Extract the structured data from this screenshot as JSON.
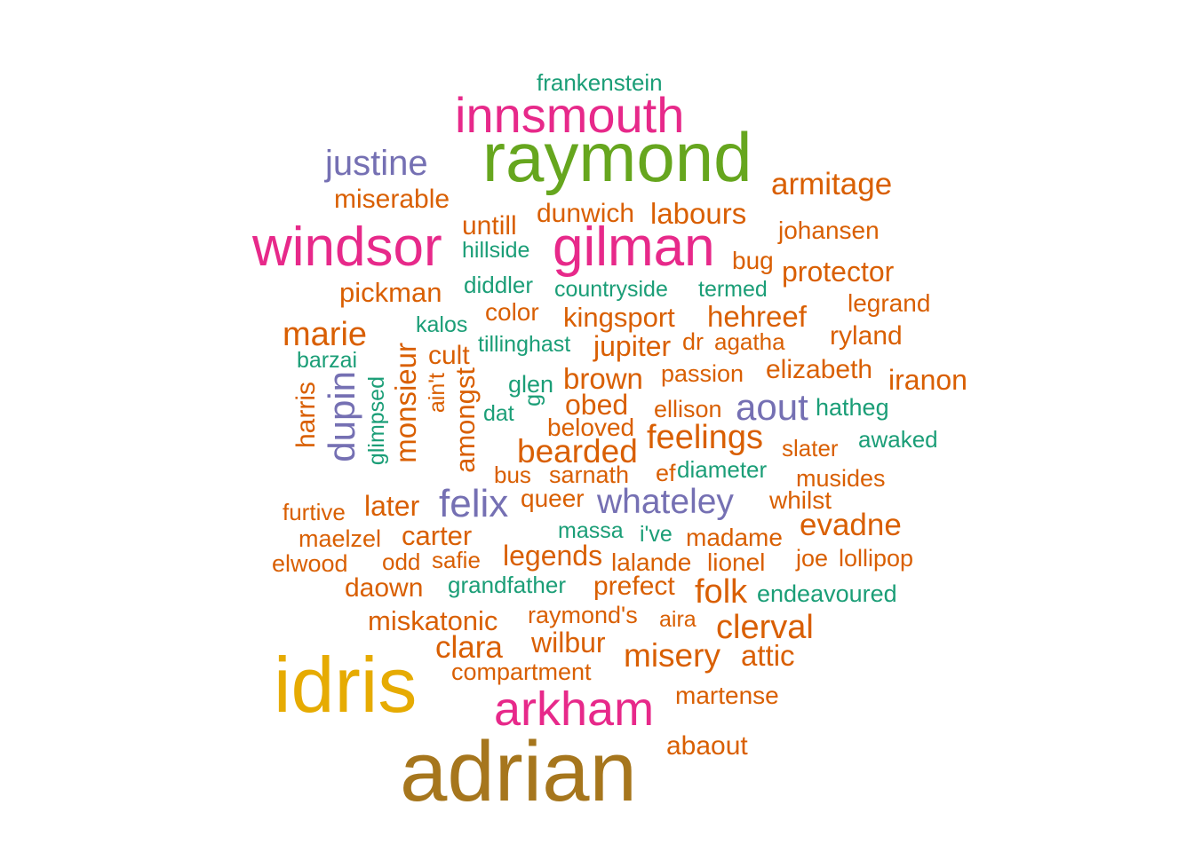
{
  "words": [
    {
      "text": "frankenstein",
      "color": "#1b9e77"
    },
    {
      "text": "innsmouth",
      "color": "#e7298a"
    },
    {
      "text": "raymond",
      "color": "#66a61e"
    },
    {
      "text": "justine",
      "color": "#7570b3"
    },
    {
      "text": "armitage",
      "color": "#d95f02"
    },
    {
      "text": "miserable",
      "color": "#d95f02"
    },
    {
      "text": "dunwich",
      "color": "#d95f02"
    },
    {
      "text": "labours",
      "color": "#d95f02"
    },
    {
      "text": "untill",
      "color": "#d95f02"
    },
    {
      "text": "windsor",
      "color": "#e7298a"
    },
    {
      "text": "gilman",
      "color": "#e7298a"
    },
    {
      "text": "johansen",
      "color": "#d95f02"
    },
    {
      "text": "hillside",
      "color": "#1b9e77"
    },
    {
      "text": "bug",
      "color": "#d95f02"
    },
    {
      "text": "protector",
      "color": "#d95f02"
    },
    {
      "text": "pickman",
      "color": "#d95f02"
    },
    {
      "text": "diddler",
      "color": "#1b9e77"
    },
    {
      "text": "countryside",
      "color": "#1b9e77"
    },
    {
      "text": "termed",
      "color": "#1b9e77"
    },
    {
      "text": "legrand",
      "color": "#d95f02"
    },
    {
      "text": "color",
      "color": "#d95f02"
    },
    {
      "text": "kingsport",
      "color": "#d95f02"
    },
    {
      "text": "hehreef",
      "color": "#d95f02"
    },
    {
      "text": "kalos",
      "color": "#1b9e77"
    },
    {
      "text": "marie",
      "color": "#d95f02"
    },
    {
      "text": "tillinghast",
      "color": "#1b9e77"
    },
    {
      "text": "jupiter",
      "color": "#d95f02"
    },
    {
      "text": "dr",
      "color": "#d95f02"
    },
    {
      "text": "agatha",
      "color": "#d95f02"
    },
    {
      "text": "ryland",
      "color": "#d95f02"
    },
    {
      "text": "barzai",
      "color": "#1b9e77"
    },
    {
      "text": "cult",
      "color": "#d95f02"
    },
    {
      "text": "passion",
      "color": "#d95f02"
    },
    {
      "text": "elizabeth",
      "color": "#d95f02"
    },
    {
      "text": "iranon",
      "color": "#d95f02"
    },
    {
      "text": "glen",
      "color": "#1b9e77"
    },
    {
      "text": "brown",
      "color": "#d95f02"
    },
    {
      "text": "aout",
      "color": "#7570b3"
    },
    {
      "text": "hatheg",
      "color": "#1b9e77"
    },
    {
      "text": "dat",
      "color": "#1b9e77"
    },
    {
      "text": "obed",
      "color": "#d95f02"
    },
    {
      "text": "ellison",
      "color": "#d95f02"
    },
    {
      "text": "beloved",
      "color": "#d95f02"
    },
    {
      "text": "feelings",
      "color": "#d95f02"
    },
    {
      "text": "awaked",
      "color": "#1b9e77"
    },
    {
      "text": "bearded",
      "color": "#d95f02"
    },
    {
      "text": "slater",
      "color": "#d95f02"
    },
    {
      "text": "bus",
      "color": "#d95f02"
    },
    {
      "text": "sarnath",
      "color": "#d95f02"
    },
    {
      "text": "ef",
      "color": "#d95f02"
    },
    {
      "text": "diameter",
      "color": "#1b9e77"
    },
    {
      "text": "musides",
      "color": "#d95f02"
    },
    {
      "text": "felix",
      "color": "#7570b3"
    },
    {
      "text": "whateley",
      "color": "#7570b3"
    },
    {
      "text": "later",
      "color": "#d95f02"
    },
    {
      "text": "queer",
      "color": "#d95f02"
    },
    {
      "text": "whilst",
      "color": "#d95f02"
    },
    {
      "text": "furtive",
      "color": "#d95f02"
    },
    {
      "text": "evadne",
      "color": "#d95f02"
    },
    {
      "text": "maelzel",
      "color": "#d95f02"
    },
    {
      "text": "carter",
      "color": "#d95f02"
    },
    {
      "text": "massa",
      "color": "#1b9e77"
    },
    {
      "text": "i've",
      "color": "#1b9e77"
    },
    {
      "text": "madame",
      "color": "#d95f02"
    },
    {
      "text": "elwood",
      "color": "#d95f02"
    },
    {
      "text": "odd",
      "color": "#d95f02"
    },
    {
      "text": "safie",
      "color": "#d95f02"
    },
    {
      "text": "legends",
      "color": "#d95f02"
    },
    {
      "text": "lalande",
      "color": "#d95f02"
    },
    {
      "text": "lionel",
      "color": "#d95f02"
    },
    {
      "text": "joe",
      "color": "#d95f02"
    },
    {
      "text": "lollipop",
      "color": "#d95f02"
    },
    {
      "text": "daown",
      "color": "#d95f02"
    },
    {
      "text": "grandfather",
      "color": "#1b9e77"
    },
    {
      "text": "prefect",
      "color": "#d95f02"
    },
    {
      "text": "folk",
      "color": "#d95f02"
    },
    {
      "text": "endeavoured",
      "color": "#1b9e77"
    },
    {
      "text": "miskatonic",
      "color": "#d95f02"
    },
    {
      "text": "raymond's",
      "color": "#d95f02"
    },
    {
      "text": "aira",
      "color": "#d95f02"
    },
    {
      "text": "clerval",
      "color": "#d95f02"
    },
    {
      "text": "clara",
      "color": "#d95f02"
    },
    {
      "text": "wilbur",
      "color": "#d95f02"
    },
    {
      "text": "misery",
      "color": "#d95f02"
    },
    {
      "text": "attic",
      "color": "#d95f02"
    },
    {
      "text": "compartment",
      "color": "#d95f02"
    },
    {
      "text": "idris",
      "color": "#e6ab02"
    },
    {
      "text": "arkham",
      "color": "#e7298a"
    },
    {
      "text": "martense",
      "color": "#d95f02"
    },
    {
      "text": "abaout",
      "color": "#d95f02"
    },
    {
      "text": "adrian",
      "color": "#a6761d"
    },
    {
      "text": "harris",
      "color": "#d95f02"
    },
    {
      "text": "dupin",
      "color": "#7570b3"
    },
    {
      "text": "glimpsed",
      "color": "#1b9e77"
    },
    {
      "text": "monsieur",
      "color": "#d95f02"
    },
    {
      "text": "ain't",
      "color": "#d95f02"
    },
    {
      "text": "amongst",
      "color": "#d95f02"
    },
    {
      "text": "g",
      "color": "#1b9e77"
    }
  ]
}
